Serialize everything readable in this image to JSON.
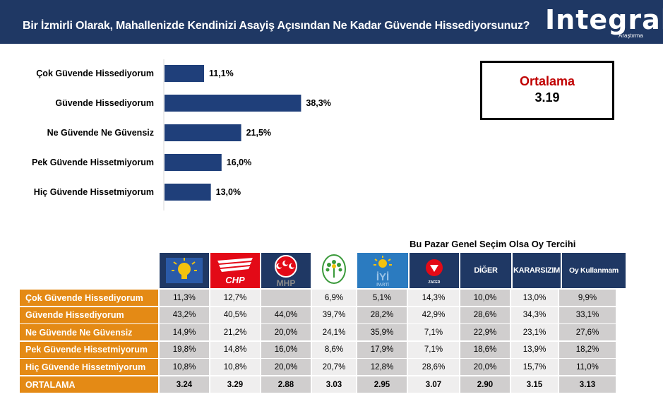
{
  "header": {
    "title": "Bir İzmirli Olarak, Mahallenizde Kendinizi Asayiş Açısından Ne Kadar Güvende Hissediyorsunuz?",
    "logo": "Integral",
    "logo_sub": "Araştırma"
  },
  "average": {
    "label": "Ortalama",
    "value": "3.19"
  },
  "chart_data": {
    "type": "bar",
    "orientation": "horizontal",
    "categories": [
      "Çok Güvende Hissediyorum",
      "Güvende Hissediyorum",
      "Ne Güvende Ne Güvensiz",
      "Pek Güvende Hissetmiyorum",
      "Hiç Güvende Hissetmiyorum"
    ],
    "values": [
      11.1,
      38.3,
      21.5,
      16.0,
      13.0
    ],
    "labels": [
      "11,1%",
      "38,3%",
      "21,5%",
      "16,0%",
      "13,0%"
    ],
    "color": "#1f3f7a",
    "xlim": [
      0,
      100
    ]
  },
  "table": {
    "title": "Bu Pazar Genel Seçim Olsa Oy Tercihi",
    "columns": [
      {
        "label": "AK PARTİ",
        "kind": "akp-logo"
      },
      {
        "label": "CHP",
        "kind": "chp-logo"
      },
      {
        "label": "MHP",
        "kind": "mhp-logo"
      },
      {
        "label": "YEŞİL SOL PARTİ",
        "kind": "ysp-logo"
      },
      {
        "label": "İYİ PARTİ",
        "kind": "iyi-logo"
      },
      {
        "label": "ZAFER PARTİSİ",
        "kind": "zafer-logo"
      },
      {
        "label": "DİĞER",
        "kind": "text"
      },
      {
        "label": "KARARSIZIM",
        "kind": "text"
      },
      {
        "label": "Oy Kullanmam",
        "kind": "text"
      }
    ],
    "rows": [
      {
        "label": "Çok Güvende Hissediyorum",
        "values": [
          "11,3%",
          "12,7%",
          "",
          "6,9%",
          "5,1%",
          "14,3%",
          "10,0%",
          "13,0%",
          "9,9%"
        ]
      },
      {
        "label": "Güvende Hissediyorum",
        "values": [
          "43,2%",
          "40,5%",
          "44,0%",
          "39,7%",
          "28,2%",
          "42,9%",
          "28,6%",
          "34,3%",
          "33,1%"
        ]
      },
      {
        "label": "Ne Güvende Ne Güvensiz",
        "values": [
          "14,9%",
          "21,2%",
          "20,0%",
          "24,1%",
          "35,9%",
          "7,1%",
          "22,9%",
          "23,1%",
          "27,6%"
        ]
      },
      {
        "label": "Pek Güvende Hissetmiyorum",
        "values": [
          "19,8%",
          "14,8%",
          "16,0%",
          "8,6%",
          "17,9%",
          "7,1%",
          "18,6%",
          "13,9%",
          "18,2%"
        ]
      },
      {
        "label": "Hiç Güvende Hissetmiyorum",
        "values": [
          "10,8%",
          "10,8%",
          "20,0%",
          "20,7%",
          "12,8%",
          "28,6%",
          "20,0%",
          "15,7%",
          "11,0%"
        ]
      },
      {
        "label": "ORTALAMA",
        "values": [
          "3.24",
          "3.29",
          "2.88",
          "3.03",
          "2.95",
          "3.07",
          "2.90",
          "3.15",
          "3.13"
        ]
      }
    ]
  }
}
